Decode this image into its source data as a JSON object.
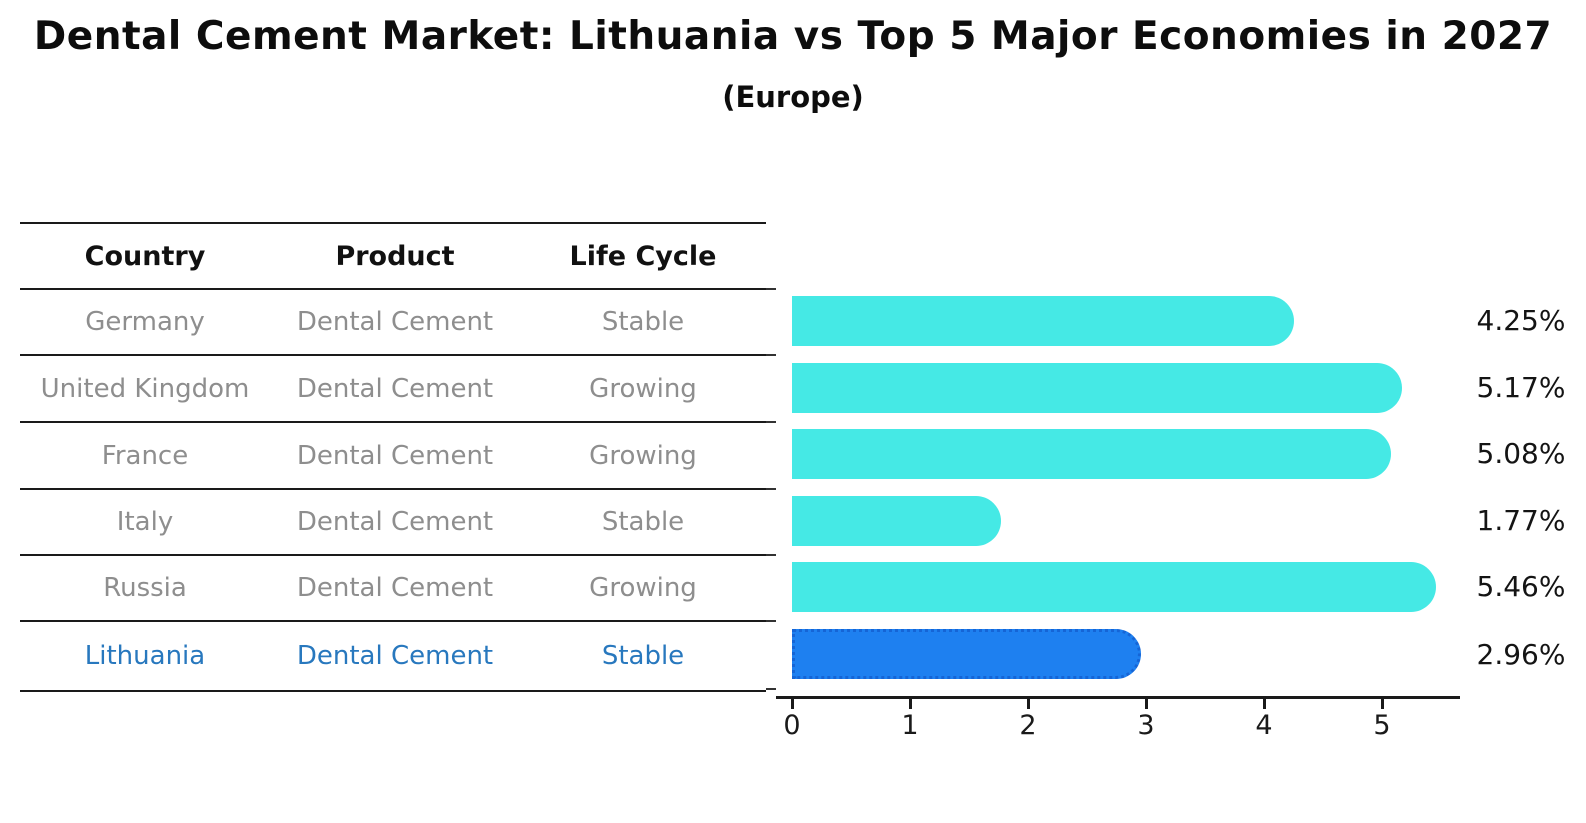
{
  "title": "Dental Cement Market: Lithuania vs Top 5 Major Economies in 2027",
  "subtitle": "(Europe)",
  "table": {
    "headers": [
      "Country",
      "Product",
      "Life Cycle"
    ],
    "rows": [
      {
        "country": "Germany",
        "product": "Dental Cement",
        "life_cycle": "Stable",
        "highlight": false
      },
      {
        "country": "United Kingdom",
        "product": "Dental Cement",
        "life_cycle": "Growing",
        "highlight": false
      },
      {
        "country": "France",
        "product": "Dental Cement",
        "life_cycle": "Growing",
        "highlight": false
      },
      {
        "country": "Italy",
        "product": "Dental Cement",
        "life_cycle": "Stable",
        "highlight": false
      },
      {
        "country": "Russia",
        "product": "Dental Cement",
        "life_cycle": "Growing",
        "highlight": false
      },
      {
        "country": "Lithuania",
        "product": "Dental Cement",
        "life_cycle": "Stable",
        "highlight": true
      }
    ]
  },
  "chart_data": {
    "type": "bar",
    "orientation": "horizontal",
    "title": "Dental Cement Market: Lithuania vs Top 5 Major Economies in 2027 (Europe)",
    "xlabel": "",
    "ylabel": "",
    "categories": [
      "Germany",
      "United Kingdom",
      "France",
      "Italy",
      "Russia",
      "Lithuania"
    ],
    "values": [
      4.25,
      5.17,
      5.08,
      1.77,
      5.46,
      2.96
    ],
    "value_labels": [
      "4.25%",
      "5.17%",
      "5.08%",
      "1.77%",
      "5.46%",
      "2.96%"
    ],
    "xticks": [
      0,
      1,
      2,
      3,
      4,
      5
    ],
    "xlim": [
      0,
      5.7
    ],
    "grid": false,
    "legend": false,
    "bar_color": "#45E9E5",
    "highlight_index": 5,
    "highlight_color": "#1E80F0",
    "highlight_border_color": "#1565D6",
    "highlight_text_color": "#2878BE"
  }
}
